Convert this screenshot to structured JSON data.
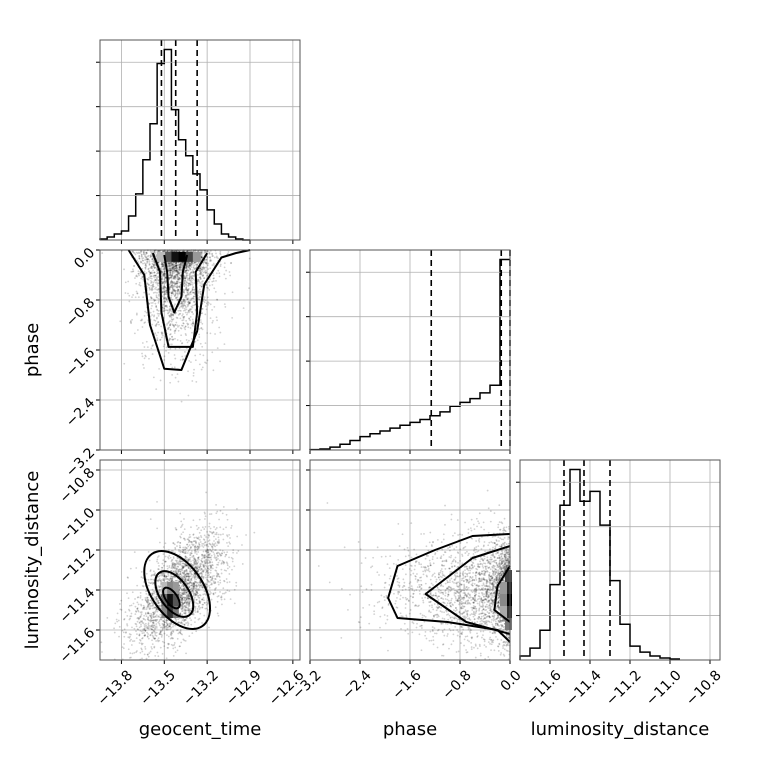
{
  "chart_data": {
    "type": "corner",
    "parameters": [
      "geocent_time",
      "phase",
      "luminosity_distance"
    ],
    "axes": {
      "geocent_time": {
        "range": [
          -13.95,
          -12.55
        ],
        "ticks": [
          "−13.8",
          "−13.5",
          "−13.2",
          "−12.9",
          "−12.6"
        ],
        "tick_values": [
          -13.8,
          -13.5,
          -13.2,
          -12.9,
          -12.6
        ]
      },
      "phase": {
        "range": [
          -3.2,
          0.0
        ],
        "ticks": [
          "−3.2",
          "−2.4",
          "−1.6",
          "−0.8",
          "0.0"
        ],
        "tick_values": [
          -3.2,
          -2.4,
          -1.6,
          -0.8,
          0.0
        ]
      },
      "luminosity_distance": {
        "range": [
          -11.75,
          -10.75
        ],
        "ticks": [
          "−11.6",
          "−11.4",
          "−11.2",
          "−11.0",
          "−10.8"
        ],
        "tick_values": [
          -11.6,
          -11.4,
          -11.2,
          -11.0,
          -10.8
        ]
      }
    },
    "quantiles": {
      "geocent_time": [
        -13.52,
        -13.42,
        -13.27
      ],
      "phase": [
        -1.26,
        -0.14,
        0.0
      ],
      "luminosity_distance": [
        -11.53,
        -11.43,
        -11.3
      ]
    },
    "histograms": {
      "geocent_time": {
        "edges": [
          -13.95,
          -13.9,
          -13.85,
          -13.8,
          -13.75,
          -13.7,
          -13.65,
          -13.6,
          -13.55,
          -13.5,
          -13.45,
          -13.4,
          -13.35,
          -13.3,
          -13.25,
          -13.2,
          -13.15,
          -13.1,
          -13.05,
          -13.0,
          -12.95,
          -12.9
        ],
        "counts": [
          0.5,
          1.5,
          3,
          4.5,
          12,
          23,
          40,
          58,
          88,
          95,
          65,
          50,
          42,
          33,
          25,
          15,
          8,
          3,
          1.5,
          0.5,
          0
        ]
      },
      "phase": {
        "edges": [
          -3.2,
          -3.04,
          -2.88,
          -2.72,
          -2.56,
          -2.4,
          -2.24,
          -2.08,
          -1.92,
          -1.76,
          -1.6,
          -1.44,
          -1.28,
          -1.12,
          -0.96,
          -0.8,
          -0.64,
          -0.48,
          -0.32,
          -0.16,
          0.0
        ],
        "counts": [
          0.2,
          0.5,
          1.5,
          3,
          5,
          7,
          8.5,
          10,
          11.5,
          13,
          14.5,
          16,
          18,
          20,
          23,
          25,
          27,
          30,
          34,
          100
        ]
      },
      "luminosity_distance": {
        "edges": [
          -11.75,
          -11.7,
          -11.65,
          -11.6,
          -11.55,
          -11.5,
          -11.45,
          -11.4,
          -11.35,
          -11.3,
          -11.25,
          -11.2,
          -11.15,
          -11.1,
          -11.05,
          -11.0,
          -10.95
        ],
        "counts": [
          2,
          6,
          15,
          38,
          78,
          96,
          80,
          85,
          68,
          40,
          18,
          7,
          4,
          2,
          1,
          0.5
        ]
      }
    },
    "contours": {
      "phase_vs_geocent_time": [
        {
          "level": "inner",
          "points": [
            [
              -13.5,
              -0.08
            ],
            [
              -13.48,
              -0.35
            ],
            [
              -13.47,
              -0.75
            ],
            [
              -13.43,
              -1.0
            ],
            [
              -13.38,
              -0.75
            ],
            [
              -13.37,
              -0.35
            ],
            [
              -13.34,
              -0.08
            ]
          ]
        },
        {
          "level": "middle",
          "points": [
            [
              -13.58,
              -0.05
            ],
            [
              -13.53,
              -0.35
            ],
            [
              -13.52,
              -1.0
            ],
            [
              -13.47,
              -1.55
            ],
            [
              -13.3,
              -1.55
            ],
            [
              -13.27,
              -1.0
            ],
            [
              -13.28,
              -0.35
            ],
            [
              -13.2,
              -0.05
            ]
          ]
        },
        {
          "level": "outer",
          "points": [
            [
              -13.75,
              0.0
            ],
            [
              -13.64,
              -0.4
            ],
            [
              -13.6,
              -1.2
            ],
            [
              -13.5,
              -1.9
            ],
            [
              -13.38,
              -1.92
            ],
            [
              -13.27,
              -1.3
            ],
            [
              -13.22,
              -0.55
            ],
            [
              -13.1,
              -0.12
            ],
            [
              -13.0,
              -0.05
            ],
            [
              -12.9,
              0.0
            ]
          ]
        }
      ],
      "luminosity_distance_vs_geocent_time": [
        {
          "level": "inner",
          "cx": -13.45,
          "cy": -11.44,
          "rx": 0.04,
          "ry": 0.06
        },
        {
          "level": "middle",
          "cx": -13.43,
          "cy": -11.42,
          "rx": 0.1,
          "ry": 0.13
        },
        {
          "level": "outer",
          "cx": -13.41,
          "cy": -11.4,
          "rx": 0.18,
          "ry": 0.22
        }
      ],
      "luminosity_distance_vs_phase": [
        {
          "level": "inner",
          "points": [
            [
              0.0,
              -11.28
            ],
            [
              -0.2,
              -11.38
            ],
            [
              -0.25,
              -11.5
            ],
            [
              0.0,
              -11.56
            ]
          ]
        },
        {
          "level": "middle",
          "points": [
            [
              0.0,
              -11.18
            ],
            [
              -0.6,
              -11.24
            ],
            [
              -1.35,
              -11.42
            ],
            [
              -0.7,
              -11.56
            ],
            [
              0.0,
              -11.62
            ]
          ]
        },
        {
          "level": "outer",
          "points": [
            [
              0.0,
              -11.12
            ],
            [
              -0.6,
              -11.13
            ],
            [
              -1.2,
              -11.2
            ],
            [
              -1.8,
              -11.28
            ],
            [
              -1.95,
              -11.44
            ],
            [
              -1.8,
              -11.54
            ],
            [
              -1.0,
              -11.56
            ],
            [
              -0.2,
              -11.6
            ],
            [
              0.0,
              -11.66
            ]
          ]
        }
      ]
    },
    "grid": true
  }
}
